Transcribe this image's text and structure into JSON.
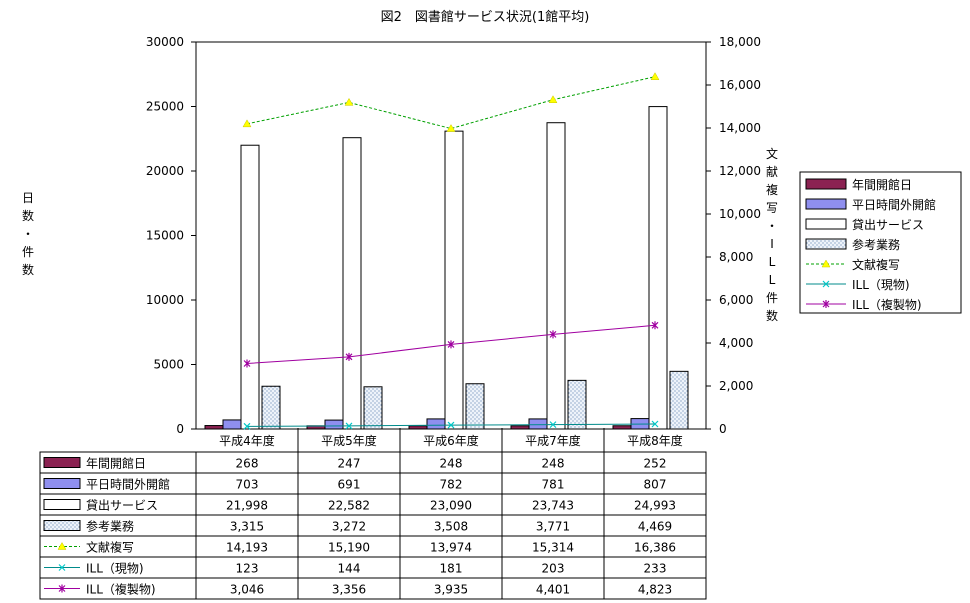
{
  "chart_data": {
    "type": "bar",
    "title": "図2　図書館サービス状況(1館平均)",
    "categories": [
      "平成4年度",
      "平成5年度",
      "平成6年度",
      "平成7年度",
      "平成8年度"
    ],
    "left_axis": {
      "label": "日数・件数",
      "range": [
        0,
        30000
      ],
      "ticks": [
        "0",
        "5000",
        "10000",
        "15000",
        "20000",
        "25000",
        "30000"
      ]
    },
    "right_axis": {
      "label": "文献複写・ILL件数",
      "range": [
        0,
        18000
      ],
      "ticks": [
        "0",
        "2,000",
        "4,000",
        "6,000",
        "8,000",
        "10,000",
        "12,000",
        "14,000",
        "16,000",
        "18,000"
      ]
    },
    "series": [
      {
        "name": "年間開館日",
        "kind": "bar",
        "axis": "left",
        "color": "#8b2252",
        "values": [
          268,
          247,
          248,
          248,
          252
        ],
        "labels": [
          "268",
          "247",
          "248",
          "248",
          "252"
        ]
      },
      {
        "name": "平日時間外開館",
        "kind": "bar",
        "axis": "left",
        "color": "#8f8fef",
        "values": [
          703,
          691,
          782,
          781,
          807
        ],
        "labels": [
          "703",
          "691",
          "782",
          "781",
          "807"
        ]
      },
      {
        "name": "貸出サービス",
        "kind": "bar",
        "axis": "left",
        "color": "#ffffff",
        "values": [
          21998,
          22582,
          23090,
          23743,
          24993
        ],
        "labels": [
          "21,998",
          "22,582",
          "23,090",
          "23,743",
          "24,993"
        ]
      },
      {
        "name": "参考業務",
        "kind": "bar",
        "axis": "left",
        "color": "#dde8f4",
        "pattern": "dots",
        "values": [
          3315,
          3272,
          3508,
          3771,
          4469
        ],
        "labels": [
          "3,315",
          "3,272",
          "3,508",
          "3,771",
          "4,469"
        ]
      },
      {
        "name": "文献複写",
        "kind": "line",
        "axis": "right",
        "color": "#00a000",
        "marker_color": "#ffff00",
        "dashed": true,
        "values": [
          14193,
          15190,
          13974,
          15314,
          16386
        ],
        "labels": [
          "14,193",
          "15,190",
          "13,974",
          "15,314",
          "16,386"
        ]
      },
      {
        "name": "ILL（現物)",
        "kind": "line",
        "axis": "right",
        "color": "#008b8b",
        "marker_color": "#00c8c8",
        "values": [
          123,
          144,
          181,
          203,
          233
        ],
        "labels": [
          "123",
          "144",
          "181",
          "203",
          "233"
        ]
      },
      {
        "name": "ILL（複製物)",
        "kind": "line",
        "axis": "right",
        "color": "#a000a0",
        "marker_color": "#a000a0",
        "values": [
          3046,
          3356,
          3935,
          4401,
          4823
        ],
        "labels": [
          "3,046",
          "3,356",
          "3,935",
          "4,401",
          "4,823"
        ]
      }
    ]
  }
}
